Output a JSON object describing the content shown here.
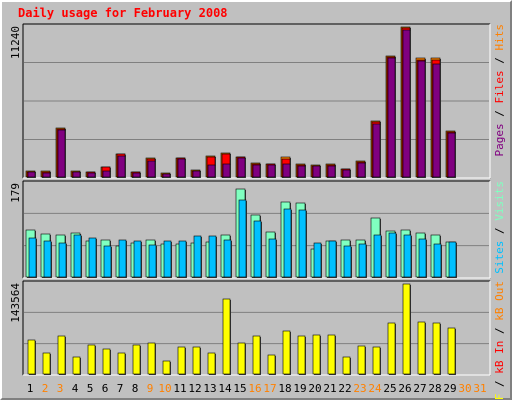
{
  "title": "Daily usage for February 2008",
  "colors": {
    "hits": "#ff8000",
    "files": "#ff0000",
    "pages": "#800080",
    "visits": "#80ffc0",
    "sites": "#00c0ff",
    "kb": "#ffff00",
    "weekday": "#000000",
    "weekend": "#ff8000"
  },
  "legend_top": [
    {
      "text": "Pages",
      "color": "#800080"
    },
    {
      "text": " / ",
      "color": "#000000"
    },
    {
      "text": "Files",
      "color": "#ff0000"
    },
    {
      "text": " / ",
      "color": "#000000"
    },
    {
      "text": "Hits",
      "color": "#ff8000"
    }
  ],
  "legend_mid": [
    {
      "text": "Sites",
      "color": "#00c0ff"
    },
    {
      "text": " / ",
      "color": "#000000"
    },
    {
      "text": "Visits",
      "color": "#80ffc0"
    }
  ],
  "legend_bot": [
    {
      "text": "kB F",
      "color": "#ffff00"
    },
    {
      "text": " / ",
      "color": "#000000"
    },
    {
      "text": "kB In",
      "color": "#ff0000"
    },
    {
      "text": " / ",
      "color": "#000000"
    },
    {
      "text": "kB Out",
      "color": "#ff8000"
    }
  ],
  "chart_data": {
    "type": "bar",
    "title": "Daily usage for February 2008",
    "categories": [
      "1",
      "2",
      "3",
      "4",
      "5",
      "6",
      "7",
      "8",
      "9",
      "10",
      "11",
      "12",
      "13",
      "14",
      "15",
      "16",
      "17",
      "18",
      "19",
      "20",
      "21",
      "22",
      "23",
      "24",
      "25",
      "26",
      "27",
      "28",
      "29",
      "30",
      "31"
    ],
    "weekend": [
      false,
      true,
      true,
      false,
      false,
      false,
      false,
      false,
      true,
      true,
      false,
      false,
      false,
      false,
      false,
      true,
      true,
      false,
      false,
      false,
      false,
      false,
      true,
      true,
      false,
      false,
      false,
      false,
      false,
      true,
      true
    ],
    "panels": [
      {
        "name": "hits-files-pages",
        "ymax": 11240,
        "ymax_label": "11240",
        "series": [
          {
            "name": "Hits",
            "values": [
              450,
              420,
              3650,
              420,
              390,
              780,
              1760,
              400,
              1390,
              270,
              1450,
              500,
              1550,
              1790,
              1520,
              1020,
              1000,
              1470,
              940,
              870,
              960,
              620,
              1180,
              4180,
              9080,
              11240,
              8880,
              8880,
              3450
            ]
          },
          {
            "name": "Files",
            "values": [
              400,
              380,
              3600,
              380,
              360,
              720,
              1700,
              350,
              1350,
              240,
              1400,
              450,
              1500,
              1750,
              1480,
              980,
              960,
              1360,
              900,
              820,
              900,
              580,
              1130,
              4100,
              9000,
              11150,
              8800,
              8750,
              3400
            ]
          },
          {
            "name": "Pages",
            "values": [
              340,
              320,
              3520,
              340,
              300,
              430,
              1600,
              320,
              1230,
              210,
              1330,
              420,
              910,
              1000,
              1410,
              930,
              920,
              980,
              800,
              790,
              850,
              520,
              1050,
              4000,
              8900,
              11000,
              8700,
              8450,
              3300
            ]
          }
        ]
      },
      {
        "name": "visits-sites",
        "ymax": 179,
        "ymax_label": "179",
        "series": [
          {
            "name": "Visits",
            "values": [
              90,
              82,
              80,
              84,
              70,
              72,
              60,
              65,
              72,
              64,
              64,
              66,
              68,
              80,
              170,
              120,
              86,
              144,
              142,
              53,
              70,
              72,
              72,
              114,
              88,
              90,
              84,
              80,
              68
            ]
          },
          {
            "name": "Sites",
            "values": [
              76,
              70,
              66,
              80,
              76,
              60,
              72,
              70,
              62,
              70,
              70,
              78,
              78,
              72,
              148,
              108,
              74,
              130,
              128,
              66,
              70,
              60,
              64,
              80,
              84,
              80,
              74,
              64,
              68
            ]
          }
        ]
      },
      {
        "name": "kbytes",
        "ymax": 143564,
        "ymax_label": "143564",
        "series": [
          {
            "name": "kB F",
            "values": [
              54000,
              34000,
              61000,
              27000,
              47000,
              40000,
              34000,
              47000,
              50000,
              20000,
              43000,
              43000,
              34000,
              120000,
              50000,
              61000,
              30000,
              68000,
              61000,
              63000,
              63000,
              27000,
              45000,
              43000,
              81000,
              143564,
              83000,
              81000,
              74000
            ]
          }
        ]
      }
    ]
  }
}
